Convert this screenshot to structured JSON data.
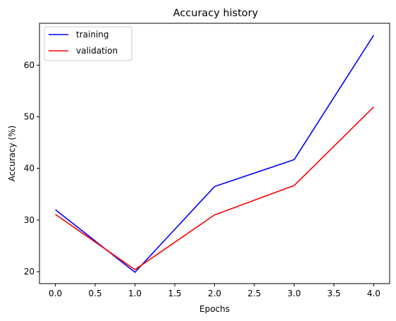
{
  "chart_data": {
    "type": "line",
    "title": "Accuracy history",
    "xlabel": "Epochs",
    "ylabel": "Accuracy (%)",
    "x": [
      0,
      1,
      2,
      3,
      4
    ],
    "xlim": [
      -0.2,
      4.2
    ],
    "ylim": [
      17.7,
      68.1
    ],
    "xticks": [
      0.0,
      0.5,
      1.0,
      1.5,
      2.0,
      2.5,
      3.0,
      3.5,
      4.0
    ],
    "xtick_labels": [
      "0.0",
      "0.5",
      "1.0",
      "1.5",
      "2.0",
      "2.5",
      "3.0",
      "3.5",
      "4.0"
    ],
    "yticks": [
      20,
      30,
      40,
      50,
      60
    ],
    "ytick_labels": [
      "20",
      "30",
      "40",
      "50",
      "60"
    ],
    "grid": false,
    "legend_position": "top-left",
    "series": [
      {
        "name": "training",
        "color": "#0000ff",
        "values": [
          32.0,
          19.9,
          36.5,
          41.7,
          65.8
        ]
      },
      {
        "name": "validation",
        "color": "#ff0000",
        "values": [
          31.1,
          20.4,
          31.0,
          36.7,
          51.9
        ]
      }
    ]
  }
}
